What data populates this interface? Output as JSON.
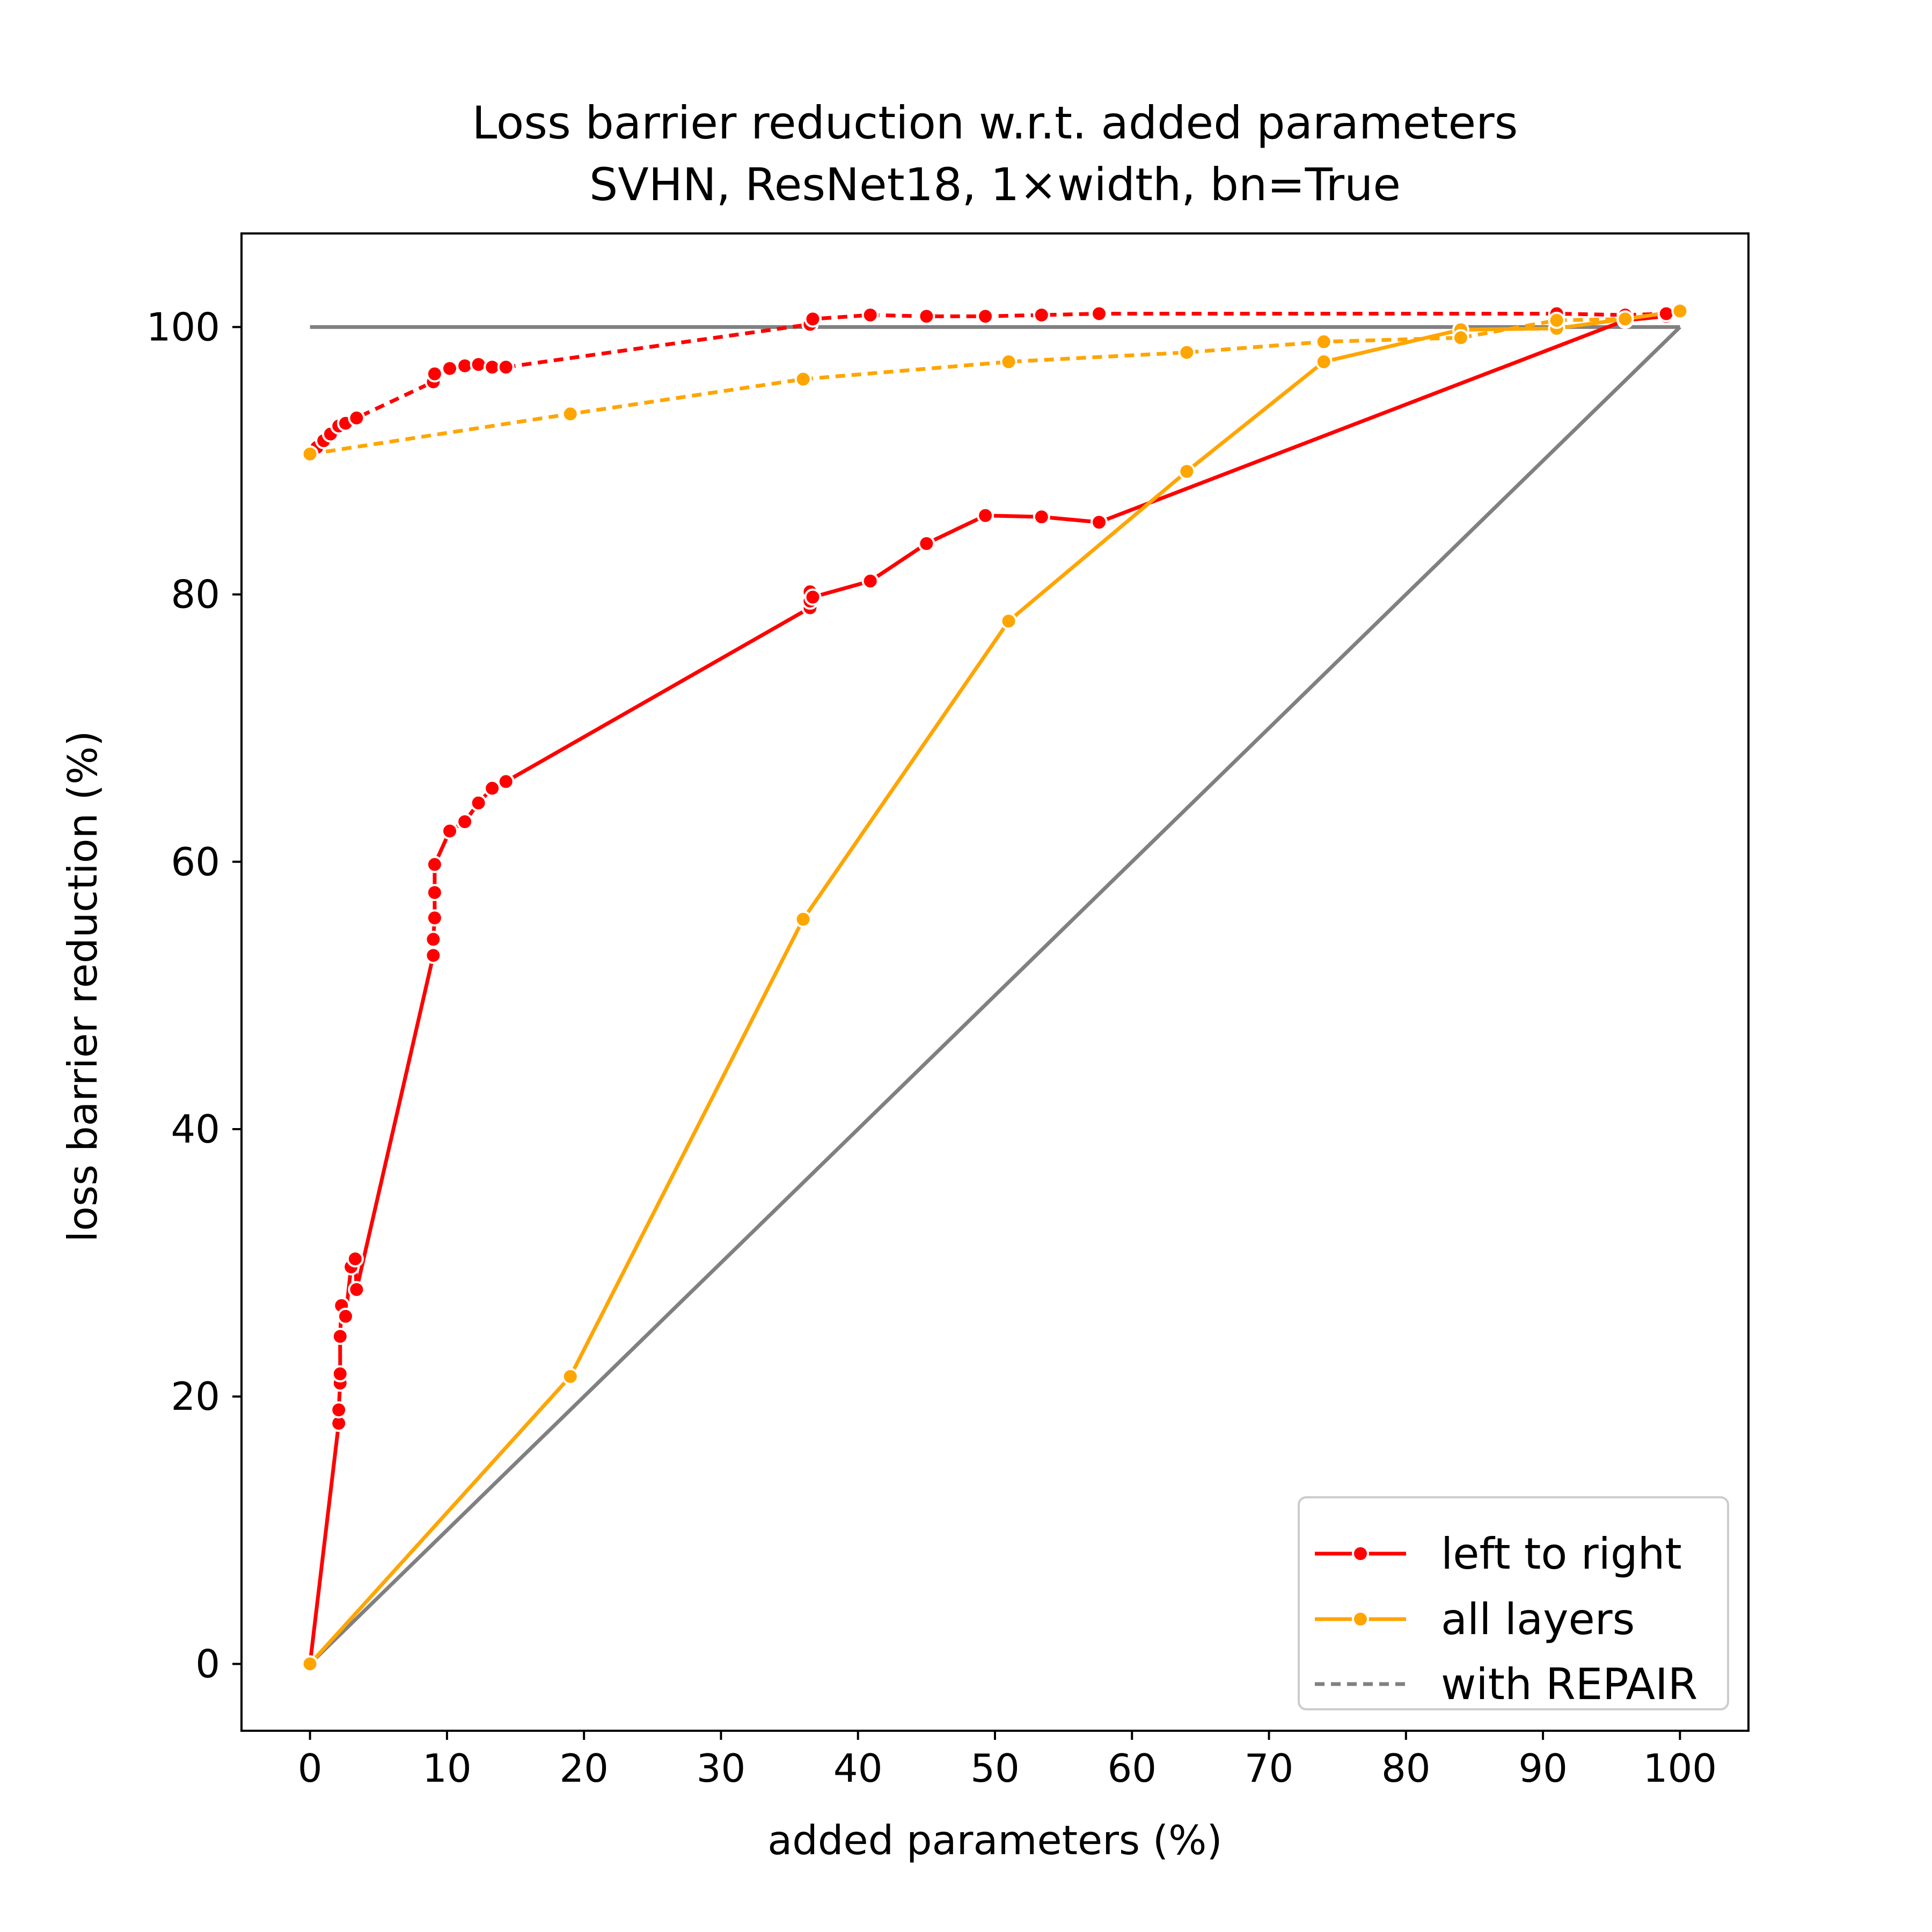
{
  "chart_data": {
    "type": "line",
    "title": "Loss barrier reduction w.r.t. added parameters",
    "subtitle": "SVHN, ResNet18, 1×width, bn=True",
    "xlabel": "added parameters (%)",
    "ylabel": "loss barrier reduction (%)",
    "xlim": [
      -5,
      105
    ],
    "ylim": [
      -5,
      107
    ],
    "xticks": [
      0,
      10,
      20,
      30,
      40,
      50,
      60,
      70,
      80,
      90,
      100
    ],
    "yticks": [
      0,
      20,
      40,
      60,
      80,
      100
    ],
    "grid": false,
    "legend_position": "lower right",
    "legend": [
      {
        "label": "left to right",
        "color": "#ff0000",
        "style": "solid-marker"
      },
      {
        "label": "all layers",
        "color": "#ffa500",
        "style": "solid-marker"
      },
      {
        "label": "with REPAIR",
        "color": "#808080",
        "style": "dashed"
      }
    ],
    "reference_lines": [
      {
        "kind": "diagonal",
        "color": "#808080",
        "points": [
          [
            0,
            0
          ],
          [
            100,
            100
          ]
        ]
      },
      {
        "kind": "horizontal",
        "color": "#808080",
        "points": [
          [
            0,
            100
          ],
          [
            100,
            100
          ]
        ]
      }
    ],
    "series": [
      {
        "name": "left to right",
        "repair": false,
        "color": "#ff0000",
        "points": [
          [
            0,
            0
          ],
          [
            2.1,
            18
          ],
          [
            2.1,
            19
          ],
          [
            2.2,
            21
          ],
          [
            2.2,
            21.7
          ],
          [
            2.2,
            24.5
          ],
          [
            2.3,
            26.8
          ],
          [
            2.6,
            26
          ],
          [
            3.0,
            29.7
          ],
          [
            3.3,
            30.3
          ],
          [
            3.4,
            28
          ],
          [
            9.0,
            53
          ],
          [
            9.0,
            54.2
          ],
          [
            9.1,
            55.8
          ],
          [
            9.1,
            57.7
          ],
          [
            9.1,
            59.8
          ],
          [
            10.2,
            62.3
          ],
          [
            11.3,
            63
          ],
          [
            12.3,
            64.4
          ],
          [
            13.3,
            65.5
          ],
          [
            14.3,
            66
          ],
          [
            36.5,
            79
          ],
          [
            36.5,
            79.5
          ],
          [
            36.5,
            80.2
          ],
          [
            36.7,
            79.8
          ],
          [
            40.9,
            81
          ],
          [
            45,
            83.8
          ],
          [
            49.3,
            85.9
          ],
          [
            53.4,
            85.8
          ],
          [
            57.6,
            85.4
          ],
          [
            96,
            100.5
          ],
          [
            99,
            100.8
          ]
        ]
      },
      {
        "name": "left to right",
        "repair": true,
        "color": "#ff0000",
        "points": [
          [
            0,
            90.5
          ],
          [
            0.5,
            91
          ],
          [
            1,
            91.5
          ],
          [
            1.5,
            92
          ],
          [
            2.1,
            92.6
          ],
          [
            2.6,
            92.8
          ],
          [
            3.4,
            93.2
          ],
          [
            9.0,
            95.9
          ],
          [
            9.1,
            96.5
          ],
          [
            10.2,
            96.9
          ],
          [
            11.3,
            97.1
          ],
          [
            12.3,
            97.2
          ],
          [
            13.3,
            97.0
          ],
          [
            14.3,
            97.0
          ],
          [
            36.5,
            100.2
          ],
          [
            36.7,
            100.6
          ],
          [
            40.9,
            100.9
          ],
          [
            45,
            100.8
          ],
          [
            49.3,
            100.8
          ],
          [
            53.4,
            100.9
          ],
          [
            57.6,
            101
          ],
          [
            91,
            101
          ],
          [
            96,
            100.9
          ],
          [
            99,
            101
          ],
          [
            100,
            101.2
          ]
        ]
      },
      {
        "name": "all layers",
        "repair": false,
        "color": "#ffa500",
        "points": [
          [
            0,
            0
          ],
          [
            19,
            21.5
          ],
          [
            36,
            55.7
          ],
          [
            51,
            78
          ],
          [
            64,
            89.2
          ],
          [
            74,
            97.4
          ],
          [
            84,
            99.8
          ],
          [
            91,
            99.9
          ],
          [
            96,
            100.6
          ],
          [
            100,
            101.2
          ]
        ]
      },
      {
        "name": "all layers",
        "repair": true,
        "color": "#ffa500",
        "points": [
          [
            0,
            90.5
          ],
          [
            19,
            93.5
          ],
          [
            36,
            96.1
          ],
          [
            51,
            97.4
          ],
          [
            64,
            98.1
          ],
          [
            74,
            98.9
          ],
          [
            84,
            99.2
          ],
          [
            91,
            100.5
          ],
          [
            96,
            100.6
          ],
          [
            100,
            101.2
          ]
        ]
      }
    ]
  }
}
